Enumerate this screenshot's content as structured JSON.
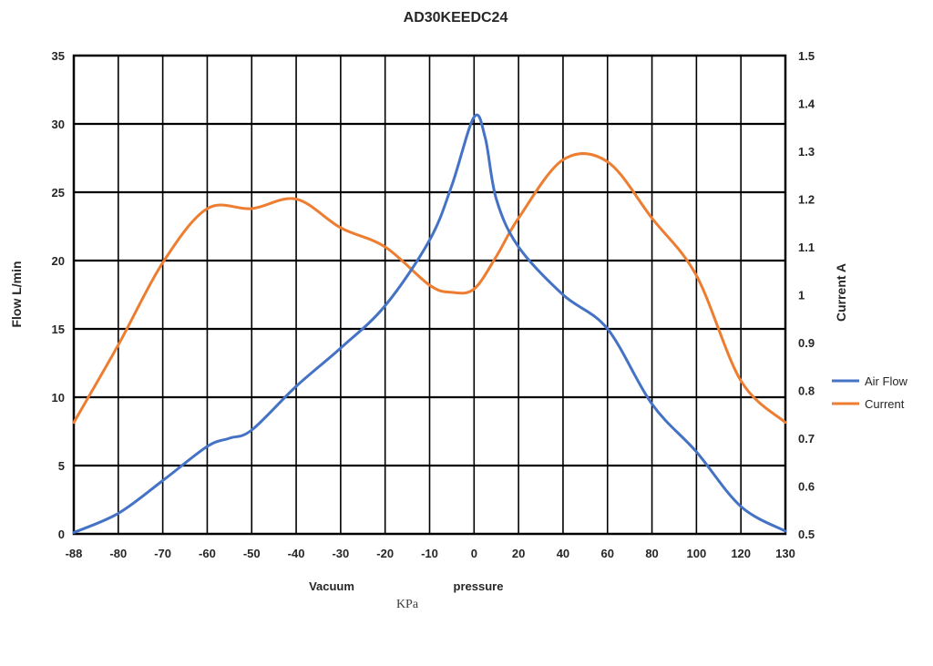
{
  "chart_data": {
    "type": "line",
    "title": "AD30KEEDC24",
    "y_left_label": "Flow  L/min",
    "y_right_label": "Current  A",
    "x_tick_labels": [
      "-88",
      "-80",
      "-70",
      "-60",
      "-50",
      "-40",
      "-30",
      "-20",
      "-10",
      "0",
      "20",
      "40",
      "60",
      "80",
      "100",
      "120",
      "130"
    ],
    "x_sublabels": {
      "vacuum": "Vacuum",
      "pressure": "pressure",
      "unit": "KPa"
    },
    "y_left_ticks": [
      0,
      5,
      10,
      15,
      20,
      25,
      30,
      35
    ],
    "y_left_range": [
      0,
      35
    ],
    "y_right_ticks": [
      "0.5",
      "0.6",
      "0.7",
      "0.8",
      "0.9",
      "1",
      "1.1",
      "1.2",
      "1.3",
      "1.4",
      "1.5"
    ],
    "y_right_range": [
      0.5,
      1.5
    ],
    "grid": true,
    "legend_position": "right",
    "series": [
      {
        "name": "Air Flow",
        "axis": "left",
        "color": "#4472c4",
        "points": [
          [
            -88,
            0.1
          ],
          [
            -80,
            1.5
          ],
          [
            -70,
            3.9
          ],
          [
            -60,
            6.4
          ],
          [
            -55,
            7.0
          ],
          [
            -50,
            7.6
          ],
          [
            -40,
            10.8
          ],
          [
            -30,
            13.6
          ],
          [
            -20,
            16.7
          ],
          [
            -10,
            21.5
          ],
          [
            -5,
            25.5
          ],
          [
            0,
            30.5
          ],
          [
            5,
            29.0
          ],
          [
            10,
            24.5
          ],
          [
            20,
            21.0
          ],
          [
            40,
            17.5
          ],
          [
            60,
            15.0
          ],
          [
            80,
            9.5
          ],
          [
            100,
            6.0
          ],
          [
            120,
            2.0
          ],
          [
            130,
            0.2
          ]
        ]
      },
      {
        "name": "Current",
        "axis": "right",
        "color": "#ed7d31",
        "points": [
          [
            -88,
            0.733
          ],
          [
            -80,
            0.895
          ],
          [
            -70,
            1.067
          ],
          [
            -60,
            1.18
          ],
          [
            -50,
            1.18
          ],
          [
            -40,
            1.2
          ],
          [
            -30,
            1.14
          ],
          [
            -20,
            1.1
          ],
          [
            -10,
            1.02
          ],
          [
            -5,
            1.005
          ],
          [
            0,
            1.012
          ],
          [
            10,
            1.08
          ],
          [
            20,
            1.16
          ],
          [
            40,
            1.282
          ],
          [
            60,
            1.278
          ],
          [
            80,
            1.16
          ],
          [
            100,
            1.04
          ],
          [
            120,
            0.82
          ],
          [
            130,
            0.733
          ]
        ]
      }
    ]
  }
}
